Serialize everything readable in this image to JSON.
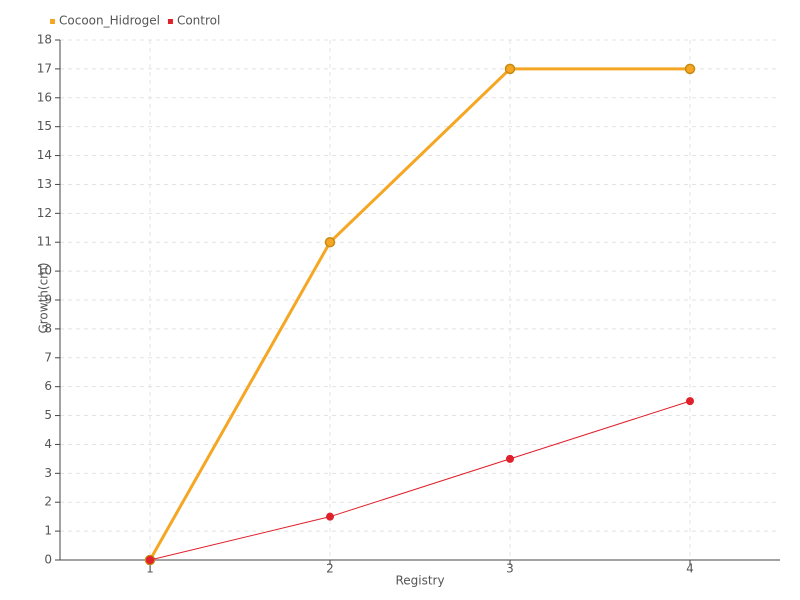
{
  "chart_data": {
    "type": "line",
    "x_label": "Registry",
    "y_label": "Growth(cm)",
    "categories": [
      "1",
      "2",
      "3",
      "4"
    ],
    "series": [
      {
        "name": "Cocoon_Hidrogel",
        "color": "#f5a623",
        "values": [
          0,
          11,
          17,
          17
        ]
      },
      {
        "name": "Control",
        "color": "#e0202a",
        "values": [
          0,
          1.5,
          3.5,
          5.5
        ]
      }
    ],
    "ylim": [
      0,
      18
    ],
    "yticks": [
      0,
      1,
      2,
      3,
      4,
      5,
      6,
      7,
      8,
      9,
      10,
      11,
      12,
      13,
      14,
      15,
      16,
      17,
      18
    ],
    "grid": true,
    "legend": "top-left"
  }
}
